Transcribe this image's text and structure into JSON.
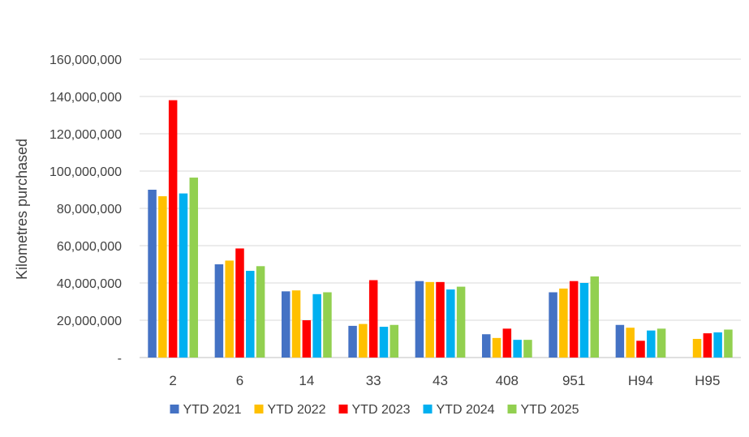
{
  "chart_data": {
    "type": "bar",
    "title": "",
    "xlabel": "",
    "ylabel": "Kilometres purchased",
    "ylim": [
      0,
      160000000
    ],
    "yticks": [
      0,
      20000000,
      40000000,
      60000000,
      80000000,
      100000000,
      120000000,
      140000000,
      160000000
    ],
    "ytick_labels": [
      "-",
      "20,000,000",
      "40,000,000",
      "60,000,000",
      "80,000,000",
      "100,000,000",
      "120,000,000",
      "140,000,000",
      "160,000,000"
    ],
    "grid": true,
    "legend_position": "bottom",
    "categories": [
      "2",
      "6",
      "14",
      "33",
      "43",
      "408",
      "951",
      "H94",
      "H95"
    ],
    "series": [
      {
        "name": "YTD 2021",
        "color": "#4472C4",
        "values": [
          90000000,
          50000000,
          35500000,
          17000000,
          41000000,
          12500000,
          35000000,
          17500000,
          0
        ]
      },
      {
        "name": "YTD 2022",
        "color": "#FFC000",
        "values": [
          86500000,
          52000000,
          36000000,
          18000000,
          40500000,
          10500000,
          37000000,
          16000000,
          10000000
        ]
      },
      {
        "name": "YTD 2023",
        "color": "#FF0000",
        "values": [
          138000000,
          58500000,
          20000000,
          41500000,
          40500000,
          15500000,
          41000000,
          9000000,
          13000000
        ]
      },
      {
        "name": "YTD 2024",
        "color": "#00B0F0",
        "values": [
          88000000,
          46500000,
          34000000,
          16500000,
          36500000,
          9500000,
          40000000,
          14500000,
          13500000
        ]
      },
      {
        "name": "YTD 2025",
        "color": "#92D050",
        "values": [
          96500000,
          49000000,
          35000000,
          17500000,
          38000000,
          9500000,
          43500000,
          15500000,
          15000000
        ]
      }
    ]
  }
}
